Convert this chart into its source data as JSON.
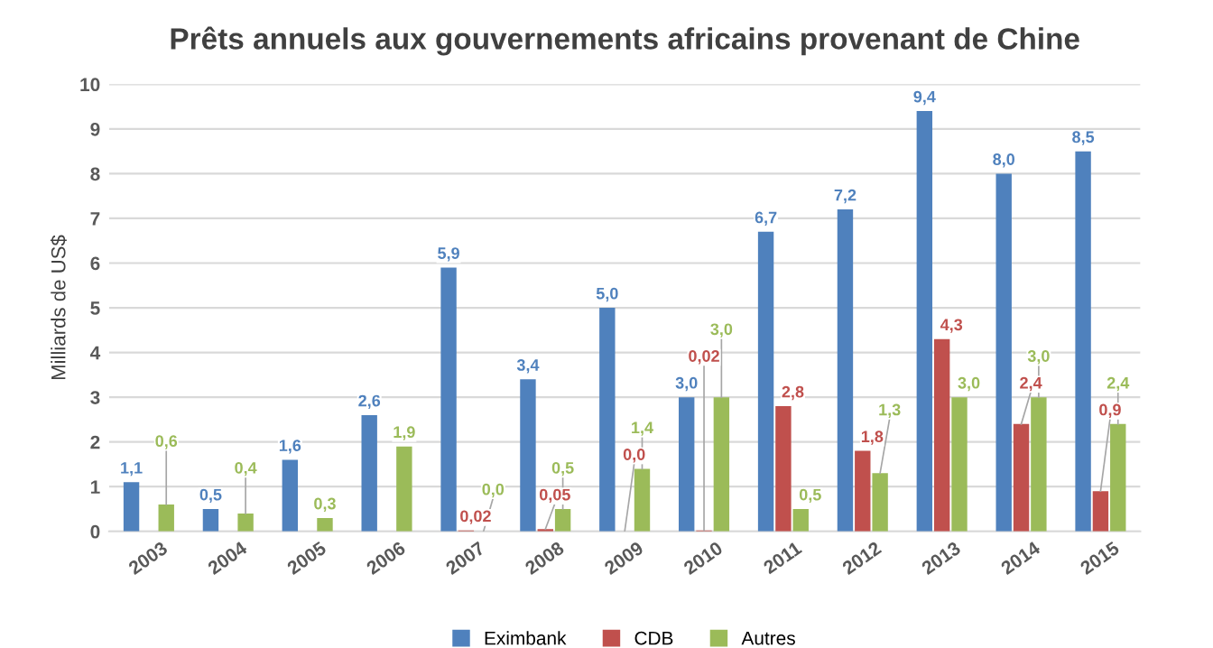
{
  "chart_data": {
    "type": "bar",
    "title": "Prêts annuels aux gouvernements africains provenant de Chine",
    "ylabel": "Milliards de US$",
    "categories": [
      "2003",
      "2004",
      "2005",
      "2006",
      "2007",
      "2008",
      "2009",
      "2010",
      "2011",
      "2012",
      "2013",
      "2014",
      "2015"
    ],
    "series": [
      {
        "name": "Eximbank",
        "color": "#4f81bd",
        "values": [
          1.1,
          0.5,
          1.6,
          2.6,
          5.9,
          3.4,
          5.0,
          3.0,
          6.7,
          7.2,
          9.4,
          8.0,
          8.5
        ],
        "value_labels": [
          "1,1",
          "0,5",
          "1,6",
          "2,6",
          "5,9",
          "3,4",
          "5,0",
          "3,0",
          "6,7",
          "7,2",
          "9,4",
          "8,0",
          "8,5"
        ]
      },
      {
        "name": "CDB",
        "color": "#c0504d",
        "values": [
          null,
          null,
          null,
          null,
          0.02,
          0.05,
          0.0,
          0.02,
          2.8,
          1.8,
          4.3,
          2.4,
          0.9
        ],
        "value_labels": [
          null,
          null,
          null,
          null,
          "0,02",
          "0,05",
          "0,0",
          "0,02",
          "2,8",
          "1,8",
          "4,3",
          "2,4",
          "0,9"
        ]
      },
      {
        "name": "Autres",
        "color": "#9bbb59",
        "values": [
          0.6,
          0.4,
          0.3,
          1.9,
          0.0,
          0.5,
          1.4,
          3.0,
          0.5,
          1.3,
          3.0,
          3.0,
          2.4
        ],
        "value_labels": [
          "0,6",
          "0,4",
          "0,3",
          "1,9",
          "0,0",
          "0,5",
          "1,4",
          "3,0",
          "0,5",
          "1,3",
          "3,0",
          "3,0",
          "2,4"
        ]
      }
    ],
    "ylim": [
      0,
      10
    ],
    "yticks": [
      0,
      1,
      2,
      3,
      4,
      5,
      6,
      7,
      8,
      9,
      10
    ],
    "grid": "y",
    "legend": "bottom"
  }
}
